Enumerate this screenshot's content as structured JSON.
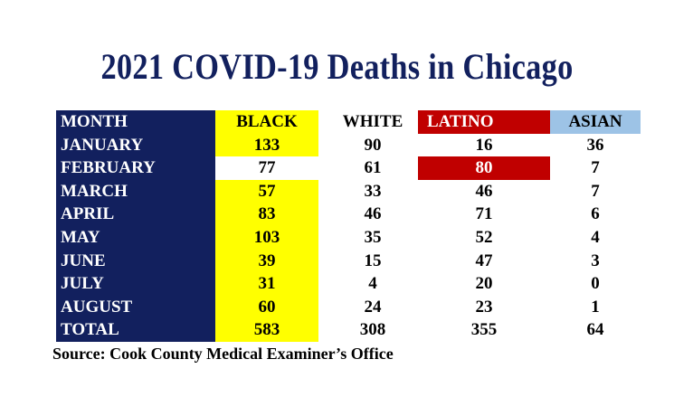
{
  "title": "2021 COVID-19 Deaths in Chicago",
  "source": "Source: Cook County Medical Examiner’s Office",
  "colors": {
    "navy": "#12205e",
    "yellow": "#ffff00",
    "red": "#c00000",
    "light_blue": "#9dc3e6"
  },
  "chart_data": {
    "type": "table",
    "title": "2021 COVID-19 Deaths in Chicago",
    "columns": [
      "MONTH",
      "BLACK",
      "WHITE",
      "LATINO",
      "ASIAN"
    ],
    "rows": [
      [
        "JANUARY",
        "133",
        "90",
        "16",
        "36"
      ],
      [
        "FEBRUARY",
        "77",
        "61",
        "80",
        "7"
      ],
      [
        "MARCH",
        "57",
        "33",
        "46",
        "7"
      ],
      [
        "APRIL",
        "83",
        "46",
        "71",
        "6"
      ],
      [
        "MAY",
        "103",
        "35",
        "52",
        "4"
      ],
      [
        "JUNE",
        "39",
        "15",
        "47",
        "3"
      ],
      [
        "JULY",
        "31",
        "4",
        "20",
        "0"
      ],
      [
        "AUGUST",
        "60",
        "24",
        "23",
        "1"
      ],
      [
        "TOTAL",
        "583",
        "308",
        "355",
        "64"
      ]
    ],
    "highlights": [
      {
        "row": "FEBRUARY",
        "column": "LATINO",
        "color": "#c00000"
      }
    ]
  }
}
